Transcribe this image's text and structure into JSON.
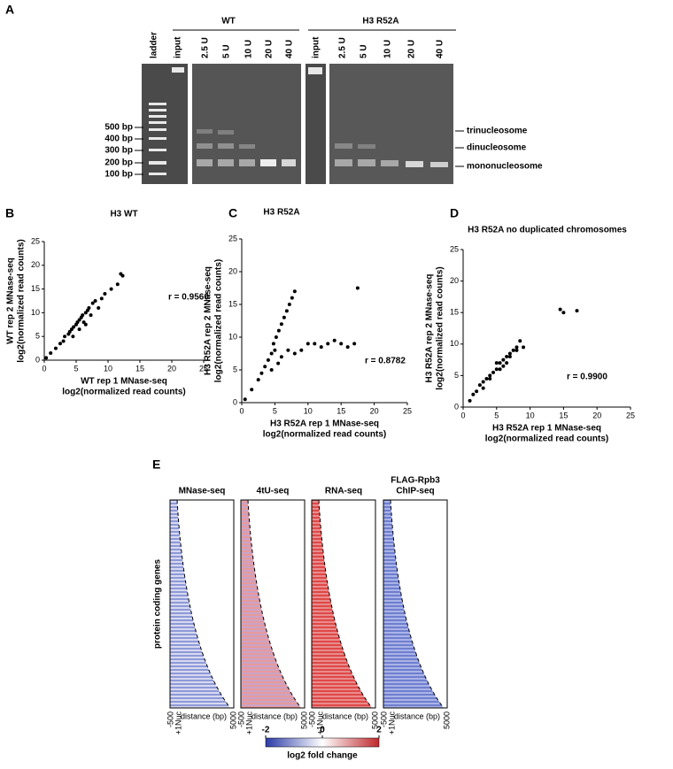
{
  "panel_labels": [
    "A",
    "B",
    "C",
    "D",
    "E"
  ],
  "gel": {
    "ladder_label": "ladder",
    "groups": [
      {
        "name": "WT",
        "lanes": [
          "input",
          "2.5 U",
          "5 U",
          "10 U",
          "20 U",
          "40 U"
        ]
      },
      {
        "name": "H3 R52A",
        "lanes": [
          "input",
          "2.5 U",
          "5 U",
          "10 U",
          "20 U",
          "40 U"
        ]
      }
    ],
    "size_markers": [
      "500 bp",
      "400 bp",
      "300 bp",
      "200 bp",
      "100 bp"
    ],
    "band_labels": [
      "trinucleosome",
      "dinucleosome",
      "mononucleosome"
    ]
  },
  "chart_data": [
    {
      "type": "scatter",
      "title": "H3 WT",
      "annotation": "r = 0.9560",
      "x_label": [
        "WT rep 1 MNase-seq",
        "log2(normalized read counts)"
      ],
      "y_label": [
        "WT rep 2 MNase-seq",
        "log2(normalized read counts)"
      ],
      "xlim": [
        0,
        25
      ],
      "ylim": [
        0,
        25
      ],
      "xticks": [
        0,
        5,
        10,
        15,
        20,
        25
      ],
      "yticks": [
        0,
        5,
        10,
        15,
        20,
        25
      ],
      "color": "#000000",
      "x": [
        0.3,
        1,
        1.8,
        2.5,
        3,
        3.2,
        3.8,
        4,
        4.3,
        4.6,
        5,
        5.2,
        5.5,
        5.8,
        6,
        6.2,
        6.5,
        6.8,
        7,
        7.3,
        7.6,
        8,
        8.5,
        9,
        9.5,
        10.5,
        11.5,
        12,
        12.3,
        4.5,
        5.5,
        6.5
      ],
      "y": [
        0.5,
        1.5,
        2.5,
        3.5,
        4,
        5,
        5.5,
        6,
        6.5,
        7,
        7.5,
        8,
        8.5,
        9,
        9.5,
        8,
        10,
        10.5,
        11,
        9.5,
        12,
        12.5,
        11,
        13,
        14,
        15,
        16,
        18.2,
        17.8,
        5,
        6.5,
        7.5
      ]
    },
    {
      "type": "scatter",
      "title": "H3 R52A",
      "annotation": "r = 0.8782",
      "x_label": [
        "H3 R52A rep 1 MNase-seq",
        "log2(normalized read counts)"
      ],
      "y_label": [
        "H3 R52A rep 2 MNase-seq",
        "log2(normalized read counts)"
      ],
      "xlim": [
        0,
        25
      ],
      "ylim": [
        0,
        25
      ],
      "xticks": [
        0,
        5,
        10,
        15,
        20,
        25
      ],
      "yticks": [
        0,
        5,
        10,
        15,
        20,
        25
      ],
      "color": "#000000",
      "x": [
        0.5,
        1.5,
        2.5,
        3,
        3.5,
        4,
        4.5,
        5,
        4.8,
        5.2,
        5.6,
        6,
        6.4,
        6.8,
        7.2,
        7.6,
        8,
        10,
        11,
        12,
        13,
        14,
        15,
        16,
        17,
        17.5,
        6,
        7,
        8,
        9,
        5.5,
        4.5
      ],
      "y": [
        0.5,
        2,
        3.5,
        4.5,
        5.5,
        6.5,
        7.5,
        8,
        9,
        10,
        11,
        12,
        13,
        14,
        15,
        16,
        17,
        9,
        9,
        8.5,
        9,
        9.5,
        9,
        8.5,
        9,
        17.5,
        7,
        8,
        7.5,
        8,
        6,
        5
      ]
    },
    {
      "type": "scatter",
      "title": "H3 R52A no duplicated chromosomes",
      "annotation": "r = 0.9900",
      "x_label": [
        "H3 R52A rep 1 MNase-seq",
        "log2(normalized read counts)"
      ],
      "y_label": [
        "H3 R52A rep 2 MNase-seq",
        "log2(normalized read counts)"
      ],
      "xlim": [
        0,
        25
      ],
      "ylim": [
        0,
        25
      ],
      "xticks": [
        0,
        5,
        10,
        15,
        20,
        25
      ],
      "yticks": [
        0,
        5,
        10,
        15,
        20,
        25
      ],
      "color": "#000000",
      "x": [
        1,
        1.5,
        2,
        2.5,
        3,
        3.5,
        4,
        4.5,
        5,
        5,
        5.5,
        6,
        6,
        6.5,
        7,
        7.5,
        8,
        8.5,
        9,
        14.5,
        15,
        17,
        4,
        5.5,
        6.5,
        7,
        3,
        8
      ],
      "y": [
        1,
        2,
        2.5,
        3.5,
        4,
        4.5,
        5,
        5.5,
        6,
        7,
        7,
        7.5,
        6.5,
        8,
        8.5,
        9,
        9.5,
        10.5,
        9.5,
        15.5,
        15,
        15.3,
        4.5,
        6,
        7,
        8,
        3,
        9
      ]
    }
  ],
  "heatmaps": {
    "y_label": "protein coding genes",
    "x_start": "-500",
    "x_tss": "+1Nuc",
    "x_label": "distance (bp)",
    "x_end": "5000",
    "panels": [
      {
        "title": [
          "MNase-seq"
        ],
        "colors": [
          "#8d9ad8",
          "#d8d8f0"
        ]
      },
      {
        "title": [
          "4tU-seq"
        ],
        "colors": [
          "#c9a3c8",
          "#e79a9a"
        ]
      },
      {
        "title": [
          "RNA-seq"
        ],
        "colors": [
          "#e04848",
          "#e88c8c"
        ]
      },
      {
        "title": [
          "FLAG-Rpb3",
          "ChIP-seq"
        ],
        "colors": [
          "#6f7fd0",
          "#aab3e6"
        ]
      }
    ],
    "colorbar": {
      "label": "log2 fold change",
      "lim": [
        -2,
        2
      ],
      "ticks": [
        -2,
        0,
        2
      ],
      "colors": [
        "#2b3ba6",
        "#ffffff",
        "#c0282d"
      ]
    }
  }
}
